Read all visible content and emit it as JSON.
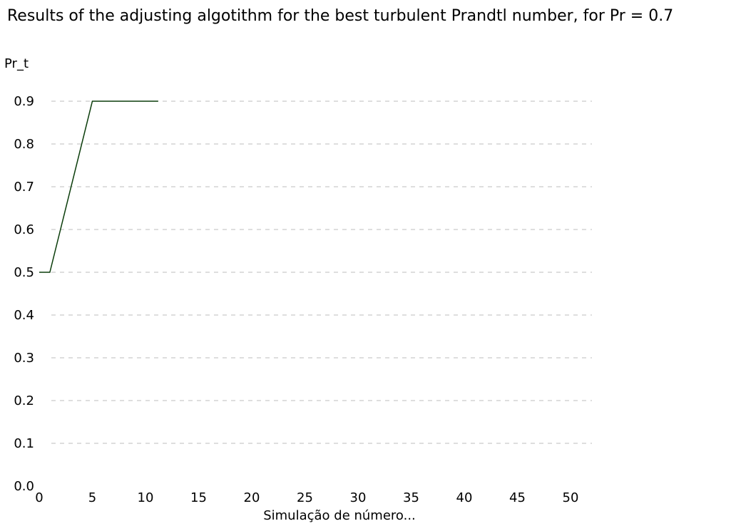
{
  "chart_data": {
    "type": "line",
    "title": "Results of the adjusting algotithm for the best turbulent Prandtl number, for Pr = 0.7",
    "xlabel": "Simulação de número...",
    "ylabel": "Pr_t",
    "xlim": [
      0,
      52
    ],
    "ylim": [
      0,
      0.9
    ],
    "xticks": [
      "0",
      "5",
      "10",
      "15",
      "20",
      "25",
      "30",
      "35",
      "40",
      "45",
      "50"
    ],
    "xtick_values": [
      0,
      5,
      10,
      15,
      20,
      25,
      30,
      35,
      40,
      45,
      50
    ],
    "yticks": [
      "0.0",
      "0.1",
      "0.2",
      "0.3",
      "0.4",
      "0.5",
      "0.6",
      "0.7",
      "0.8",
      "0.9"
    ],
    "ytick_values": [
      0,
      0.1,
      0.2,
      0.3,
      0.4,
      0.5,
      0.6,
      0.7,
      0.8,
      0.9
    ],
    "grid": true,
    "series": [
      {
        "color": "#0b3d0b",
        "x": [
          0,
          1,
          5,
          11.2
        ],
        "y": [
          0.5,
          0.5,
          0.9,
          0.9
        ]
      }
    ]
  }
}
